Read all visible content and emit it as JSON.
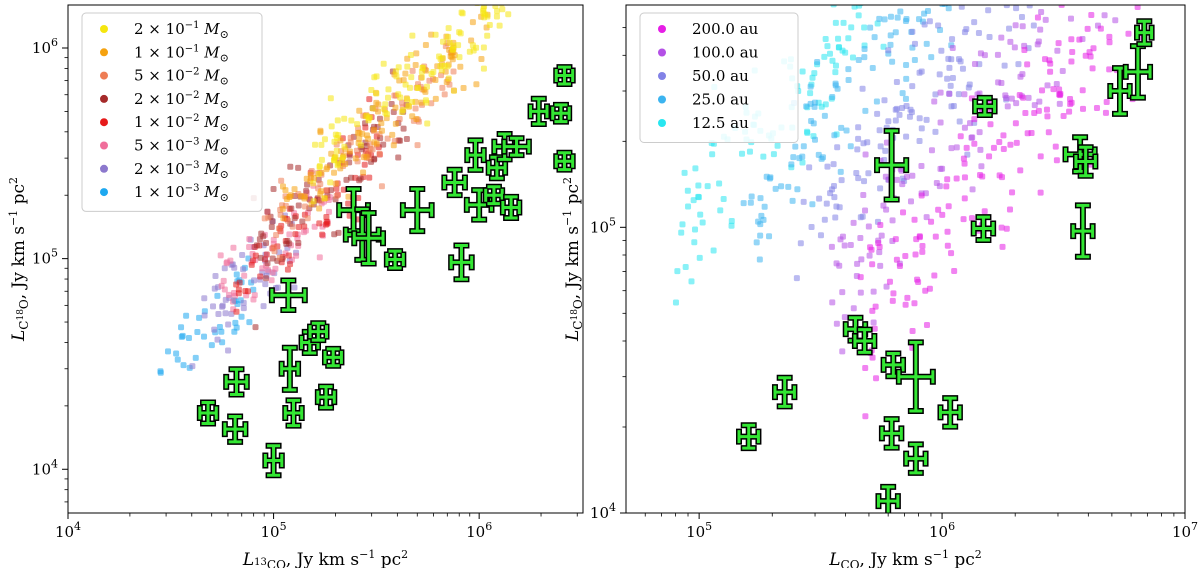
{
  "chart_data": [
    {
      "type": "scatter",
      "id": "left",
      "xlabel": "L_13CO, Jy km s^-1 pc^2",
      "ylabel": "L_C18O, Jy km s^-1 pc^2",
      "xlabel_parts": {
        "sym": "L",
        "sub_sup": "13",
        "sub": "CO",
        "unit": ", Jy km s",
        "exp": "−1",
        "tail": " pc",
        "exp2": "2"
      },
      "ylabel_parts": {
        "sym": "L",
        "sub": "C",
        "sub_sup": "18",
        "sub2": "O",
        "unit": ", Jy km s",
        "exp": "−1",
        "tail": " pc",
        "exp2": "2"
      },
      "xscale": "log",
      "yscale": "log",
      "xlim": [
        10000,
        3200000
      ],
      "ylim": [
        6200,
        1600000
      ],
      "xticks": [
        {
          "v": 10000,
          "m": "10",
          "e": "4"
        },
        {
          "v": 100000,
          "m": "10",
          "e": "5"
        },
        {
          "v": 1000000,
          "m": "10",
          "e": "6"
        }
      ],
      "yticks": [
        {
          "v": 10000,
          "m": "10",
          "e": "4"
        },
        {
          "v": 100000,
          "m": "10",
          "e": "5"
        },
        {
          "v": 1000000,
          "m": "10",
          "e": "6"
        }
      ],
      "legend_position": "upper-left",
      "legend": [
        {
          "m": "2 × 10",
          "e": "−1",
          "u": "M",
          "s": "⊙",
          "color": "#f5e60f"
        },
        {
          "m": "1 × 10",
          "e": "−1",
          "u": "M",
          "s": "⊙",
          "color": "#f5a210"
        },
        {
          "m": "5 × 10",
          "e": "−2",
          "u": "M",
          "s": "⊙",
          "color": "#ee7d55"
        },
        {
          "m": "2 × 10",
          "e": "−2",
          "u": "M",
          "s": "⊙",
          "color": "#a52a2a"
        },
        {
          "m": "1 × 10",
          "e": "−2",
          "u": "M",
          "s": "⊙",
          "color": "#e61a1a"
        },
        {
          "m": "5 × 10",
          "e": "−3",
          "u": "M",
          "s": "⊙",
          "color": "#f06e9b"
        },
        {
          "m": "2 × 10",
          "e": "−3",
          "u": "M",
          "s": "⊙",
          "color": "#8c78cd"
        },
        {
          "m": "1 × 10",
          "e": "−3",
          "u": "M",
          "s": "⊙",
          "color": "#1ea8f0"
        }
      ],
      "model_bands": [
        {
          "color": "#1ea8f0",
          "x_range": [
            28000,
            80000
          ],
          "c_log10": 0.58,
          "slope": 0.88,
          "spread": 0.1,
          "n": 40
        },
        {
          "color": "#8c78cd",
          "x_range": [
            40000,
            130000
          ],
          "c_log10": 0.6,
          "slope": 0.88,
          "spread": 0.1,
          "n": 50
        },
        {
          "color": "#f06e9b",
          "x_range": [
            55000,
            190000
          ],
          "c_log10": 0.63,
          "slope": 0.88,
          "spread": 0.1,
          "n": 60
        },
        {
          "color": "#e61a1a",
          "x_range": [
            65000,
            330000
          ],
          "c_log10": 0.66,
          "slope": 0.88,
          "spread": 0.1,
          "n": 70
        },
        {
          "color": "#a52a2a",
          "x_range": [
            80000,
            500000
          ],
          "c_log10": 0.7,
          "slope": 0.88,
          "spread": 0.1,
          "n": 80
        },
        {
          "color": "#ee7d55",
          "x_range": [
            90000,
            800000
          ],
          "c_log10": 0.74,
          "slope": 0.88,
          "spread": 0.09,
          "n": 90
        },
        {
          "color": "#f5a210",
          "x_range": [
            110000,
            1100000
          ],
          "c_log10": 0.79,
          "slope": 0.88,
          "spread": 0.09,
          "n": 110
        },
        {
          "color": "#f5e60f",
          "x_range": [
            150000,
            1400000
          ],
          "c_log10": 0.84,
          "slope": 0.88,
          "spread": 0.09,
          "n": 130
        }
      ],
      "observations": [
        {
          "x": 48000,
          "y": 18500,
          "xerr": 0.04,
          "yerr": 0.05
        },
        {
          "x": 65000,
          "y": 15500,
          "xerr": 0.05,
          "yerr": 0.06
        },
        {
          "x": 66000,
          "y": 26000,
          "xerr": 0.05,
          "yerr": 0.06
        },
        {
          "x": 100000,
          "y": 11000,
          "xerr": 0.04,
          "yerr": 0.07
        },
        {
          "x": 118000,
          "y": 67000,
          "xerr": 0.08,
          "yerr": 0.07
        },
        {
          "x": 120000,
          "y": 30000,
          "xerr": 0.04,
          "yerr": 0.1
        },
        {
          "x": 125000,
          "y": 18500,
          "xerr": 0.04,
          "yerr": 0.06
        },
        {
          "x": 150000,
          "y": 40000,
          "xerr": 0.04,
          "yerr": 0.05
        },
        {
          "x": 165000,
          "y": 45000,
          "xerr": 0.04,
          "yerr": 0.04
        },
        {
          "x": 180000,
          "y": 22000,
          "xerr": 0.04,
          "yerr": 0.05
        },
        {
          "x": 195000,
          "y": 34000,
          "xerr": 0.04,
          "yerr": 0.04
        },
        {
          "x": 245000,
          "y": 170000,
          "xerr": 0.07,
          "yerr": 0.1
        },
        {
          "x": 270000,
          "y": 130000,
          "xerr": 0.08,
          "yerr": 0.12
        },
        {
          "x": 290000,
          "y": 125000,
          "xerr": 0.07,
          "yerr": 0.12
        },
        {
          "x": 390000,
          "y": 99000,
          "xerr": 0.04,
          "yerr": 0.04
        },
        {
          "x": 500000,
          "y": 170000,
          "xerr": 0.07,
          "yerr": 0.1
        },
        {
          "x": 760000,
          "y": 230000,
          "xerr": 0.05,
          "yerr": 0.06
        },
        {
          "x": 820000,
          "y": 96000,
          "xerr": 0.05,
          "yerr": 0.08
        },
        {
          "x": 960000,
          "y": 310000,
          "xerr": 0.04,
          "yerr": 0.07
        },
        {
          "x": 1000000,
          "y": 180000,
          "xerr": 0.06,
          "yerr": 0.07
        },
        {
          "x": 1180000,
          "y": 200000,
          "xerr": 0.04,
          "yerr": 0.04
        },
        {
          "x": 1220000,
          "y": 270000,
          "xerr": 0.04,
          "yerr": 0.05
        },
        {
          "x": 1330000,
          "y": 340000,
          "xerr": 0.05,
          "yerr": 0.06
        },
        {
          "x": 1430000,
          "y": 175000,
          "xerr": 0.04,
          "yerr": 0.05
        },
        {
          "x": 1520000,
          "y": 340000,
          "xerr": 0.06,
          "yerr": 0.04
        },
        {
          "x": 1950000,
          "y": 500000,
          "xerr": 0.04,
          "yerr": 0.06
        },
        {
          "x": 2500000,
          "y": 490000,
          "xerr": 0.04,
          "yerr": 0.04
        },
        {
          "x": 2600000,
          "y": 740000,
          "xerr": 0.04,
          "yerr": 0.04
        },
        {
          "x": 2600000,
          "y": 290000,
          "xerr": 0.04,
          "yerr": 0.04
        }
      ]
    },
    {
      "type": "scatter",
      "id": "right",
      "xlabel": "L_CO, Jy km s^-1 pc^2",
      "ylabel": "L_C18O, Jy km s^-1 pc^2",
      "xlabel_parts": {
        "sym": "L",
        "sub": "CO",
        "unit": ", Jy km s",
        "exp": "−1",
        "tail": " pc",
        "exp2": "2"
      },
      "ylabel_parts": {
        "sym": "L",
        "sub": "C",
        "sub_sup": "18",
        "sub2": "O",
        "unit": ", Jy km s",
        "exp": "−1",
        "tail": " pc",
        "exp2": "2"
      },
      "xscale": "log",
      "yscale": "log",
      "xlim": [
        50000,
        10000000
      ],
      "ylim": [
        10000,
        600000
      ],
      "xticks": [
        {
          "v": 100000,
          "m": "10",
          "e": "5"
        },
        {
          "v": 1000000,
          "m": "10",
          "e": "6"
        },
        {
          "v": 10000000,
          "m": "10",
          "e": "7"
        }
      ],
      "yticks": [
        {
          "v": 10000,
          "m": "10",
          "e": "4"
        },
        {
          "v": 100000,
          "m": "10",
          "e": "5"
        }
      ],
      "legend_position": "upper-left",
      "legend": [
        {
          "label": "200.0 au",
          "color": "#e61ee6"
        },
        {
          "label": "100.0 au",
          "color": "#b450e6"
        },
        {
          "label": "50.0 au",
          "color": "#8282e6"
        },
        {
          "label": "25.0 au",
          "color": "#3cb4f0"
        },
        {
          "label": "12.5 au",
          "color": "#28e6f0"
        }
      ],
      "model_bands": [
        {
          "color": "#28e6f0",
          "x_range": [
            80000,
            600000
          ],
          "c_log10": 0.05,
          "slope": 1.0,
          "spread": 0.12,
          "n": 110
        },
        {
          "color": "#3cb4f0",
          "x_range": [
            150000,
            1100000
          ],
          "c_log10": -0.15,
          "slope": 1.0,
          "spread": 0.12,
          "n": 110
        },
        {
          "color": "#8282e6",
          "x_range": [
            250000,
            2500000
          ],
          "c_log10": -0.45,
          "slope": 1.0,
          "spread": 0.14,
          "n": 130
        },
        {
          "color": "#b450e6",
          "x_range": [
            350000,
            7000000
          ],
          "c_log10": -0.75,
          "slope": 1.0,
          "spread": 0.15,
          "n": 160
        },
        {
          "color": "#e61ee6",
          "x_range": [
            450000,
            7000000
          ],
          "c_log10": -1.0,
          "slope": 1.0,
          "spread": 0.15,
          "n": 170
        }
      ],
      "observations": [
        {
          "x": 160000,
          "y": 18500,
          "xerr": 0.04,
          "yerr": 0.04
        },
        {
          "x": 225000,
          "y": 26500,
          "xerr": 0.04,
          "yerr": 0.05
        },
        {
          "x": 440000,
          "y": 44000,
          "xerr": 0.04,
          "yerr": 0.04
        },
        {
          "x": 480000,
          "y": 40000,
          "xerr": 0.04,
          "yerr": 0.04
        },
        {
          "x": 600000,
          "y": 11000,
          "xerr": 0.04,
          "yerr": 0.05
        },
        {
          "x": 620000,
          "y": 19000,
          "xerr": 0.04,
          "yerr": 0.05
        },
        {
          "x": 620000,
          "y": 165000,
          "xerr": 0.06,
          "yerr": 0.12
        },
        {
          "x": 630000,
          "y": 33000,
          "xerr": 0.04,
          "yerr": 0.04
        },
        {
          "x": 780000,
          "y": 30000,
          "xerr": 0.07,
          "yerr": 0.12
        },
        {
          "x": 780000,
          "y": 15500,
          "xerr": 0.04,
          "yerr": 0.05
        },
        {
          "x": 1080000,
          "y": 22500,
          "xerr": 0.04,
          "yerr": 0.05
        },
        {
          "x": 1480000,
          "y": 99000,
          "xerr": 0.04,
          "yerr": 0.04
        },
        {
          "x": 1500000,
          "y": 265000,
          "xerr": 0.04,
          "yerr": 0.03
        },
        {
          "x": 3700000,
          "y": 180000,
          "xerr": 0.06,
          "yerr": 0.06
        },
        {
          "x": 3800000,
          "y": 97000,
          "xerr": 0.04,
          "yerr": 0.09
        },
        {
          "x": 3900000,
          "y": 170000,
          "xerr": 0.04,
          "yerr": 0.05
        },
        {
          "x": 5400000,
          "y": 300000,
          "xerr": 0.04,
          "yerr": 0.08
        },
        {
          "x": 6400000,
          "y": 350000,
          "xerr": 0.05,
          "yerr": 0.09
        },
        {
          "x": 6800000,
          "y": 480000,
          "xerr": 0.03,
          "yerr": 0.04
        }
      ]
    }
  ]
}
